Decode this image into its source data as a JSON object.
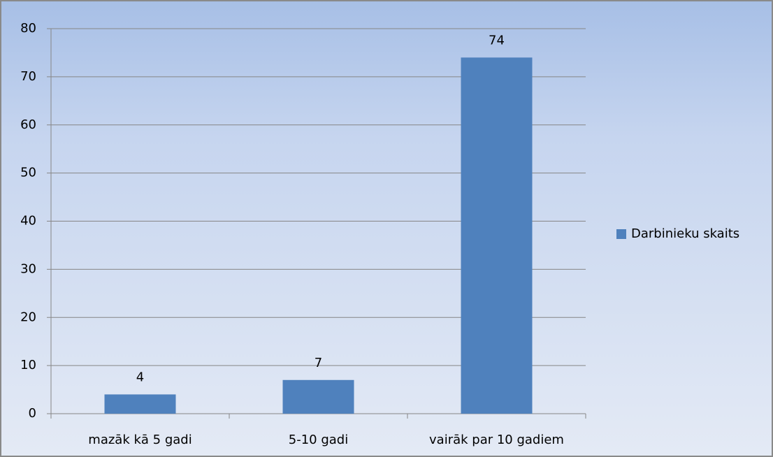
{
  "chart_data": {
    "type": "bar",
    "categories": [
      "mazāk kā 5 gadi",
      "5-10 gadi",
      "vairāk par 10 gadiem"
    ],
    "series": [
      {
        "name": "Darbinieku skaits",
        "color": "#4f81bd",
        "values": [
          4,
          7,
          74
        ]
      }
    ],
    "ylim": [
      0,
      80
    ],
    "yticks": [
      0,
      10,
      20,
      30,
      40,
      50,
      60,
      70,
      80
    ],
    "grid": true,
    "legend": "right"
  }
}
